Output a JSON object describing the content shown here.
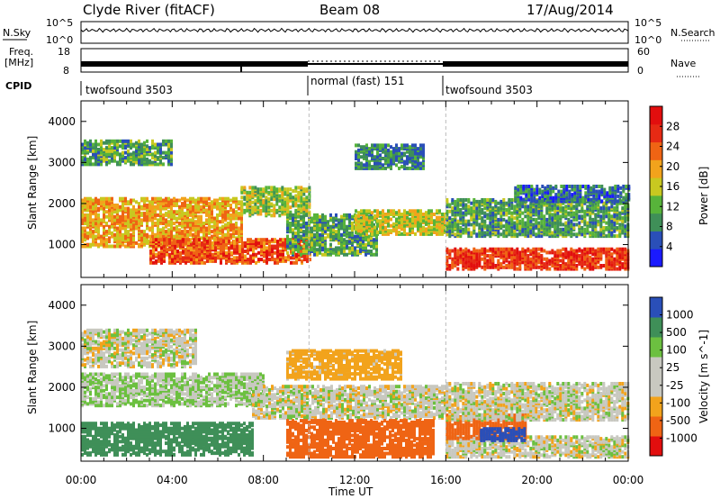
{
  "header": {
    "station": "Clyde River (fitACF)",
    "beam": "Beam 08",
    "date": "17/Aug/2014"
  },
  "strips": {
    "nsky_label": "N.Sky",
    "nsearch_label": "N.Search",
    "freq_label_line1": "Freq.",
    "freq_label_line2": "[MHz]",
    "nave_label": "Nave",
    "cpid_label": "CPID",
    "noise_left_ticks": [
      "10^5",
      "10^0"
    ],
    "noise_right_ticks": [
      "10^5",
      "10^0"
    ],
    "freq_left_ticks": [
      "18",
      "8"
    ],
    "freq_right_ticks": [
      "60",
      "0"
    ]
  },
  "cpid_segments": [
    {
      "label": "twofsound 3503",
      "start_h": 0,
      "end_h": 10
    },
    {
      "label": "normal (fast) 151",
      "start_h": 10,
      "end_h": 16
    },
    {
      "label": "twofsound 3503",
      "start_h": 16,
      "end_h": 24
    }
  ],
  "x_axis": {
    "title": "Time UT",
    "ticks": [
      "00:00",
      "04:00",
      "08:00",
      "12:00",
      "16:00",
      "20:00",
      "00:00"
    ]
  },
  "power_colorbar": {
    "title": "Power [dB]",
    "ticks": [
      "28",
      "24",
      "20",
      "16",
      "12",
      "8",
      "4"
    ],
    "colors": [
      "#1a1aff",
      "#2a4fb8",
      "#3f8f58",
      "#57b33a",
      "#c8c820",
      "#f2a31c",
      "#ef6414",
      "#e62a14",
      "#e20e0e"
    ]
  },
  "velocity_colorbar": {
    "title": "Velocity [m s^-1]",
    "ticks": [
      "1000",
      "500",
      "100",
      "25",
      "-25",
      "-100",
      "-500",
      "-1000"
    ],
    "colors": [
      "#2a4fb8",
      "#3f8f58",
      "#6cc040",
      "#c8c8c0",
      "#c8c8c0",
      "#f2a31c",
      "#ef6414",
      "#e20e0e"
    ]
  },
  "chart_data": [
    {
      "type": "heatmap",
      "title": "Power",
      "xlabel": "Time UT",
      "ylabel": "Slant Range [km]",
      "y_ticks": [
        "1000",
        "2000",
        "3000",
        "4000"
      ],
      "xlim_hours": [
        0,
        24
      ],
      "ylim_km": [
        200,
        4500
      ],
      "bands": [
        {
          "start_h": 0.0,
          "end_h": 7.0,
          "center_km": 1600,
          "width_km": 1200,
          "level_db": 20
        },
        {
          "start_h": 0.0,
          "end_h": 4.0,
          "center_km": 3300,
          "width_km": 600,
          "level_db": 10
        },
        {
          "start_h": 3.0,
          "end_h": 10.0,
          "center_km": 900,
          "width_km": 600,
          "level_db": 26
        },
        {
          "start_h": 7.0,
          "end_h": 10.0,
          "center_km": 2100,
          "width_km": 700,
          "level_db": 14
        },
        {
          "start_h": 9.0,
          "end_h": 13.0,
          "center_km": 1300,
          "width_km": 1000,
          "level_db": 10
        },
        {
          "start_h": 12.0,
          "end_h": 16.0,
          "center_km": 1600,
          "width_km": 600,
          "level_db": 16
        },
        {
          "start_h": 12.0,
          "end_h": 15.0,
          "center_km": 3200,
          "width_km": 600,
          "level_db": 8
        },
        {
          "start_h": 16.0,
          "end_h": 24.0,
          "center_km": 700,
          "width_km": 500,
          "level_db": 28
        },
        {
          "start_h": 16.0,
          "end_h": 24.0,
          "center_km": 1700,
          "width_km": 900,
          "level_db": 10
        },
        {
          "start_h": 19.0,
          "end_h": 24.0,
          "center_km": 2300,
          "width_km": 400,
          "level_db": 6
        }
      ]
    },
    {
      "type": "heatmap",
      "title": "Velocity",
      "xlabel": "Time UT",
      "ylabel": "Slant Range [km]",
      "y_ticks": [
        "1000",
        "2000",
        "3000",
        "4000"
      ],
      "xlim_hours": [
        0,
        24
      ],
      "ylim_km": [
        200,
        4500
      ],
      "bands": [
        {
          "start_h": 0.0,
          "end_h": 7.5,
          "center_km": 800,
          "width_km": 800,
          "level_ms": 400
        },
        {
          "start_h": 0.0,
          "end_h": 8.0,
          "center_km": 2000,
          "width_km": 800,
          "level_ms": 60
        },
        {
          "start_h": 0.0,
          "end_h": 5.0,
          "center_km": 3000,
          "width_km": 900,
          "level_ms": 0
        },
        {
          "start_h": 7.5,
          "end_h": 16.0,
          "center_km": 1700,
          "width_km": 800,
          "level_ms": 0
        },
        {
          "start_h": 9.0,
          "end_h": 15.5,
          "center_km": 800,
          "width_km": 900,
          "level_ms": -600
        },
        {
          "start_h": 9.0,
          "end_h": 14.0,
          "center_km": 2600,
          "width_km": 700,
          "level_ms": -150
        },
        {
          "start_h": 16.0,
          "end_h": 24.0,
          "center_km": 600,
          "width_km": 500,
          "level_ms": 0
        },
        {
          "start_h": 16.0,
          "end_h": 19.5,
          "center_km": 1100,
          "width_km": 600,
          "level_ms": -400
        },
        {
          "start_h": 17.5,
          "end_h": 19.5,
          "center_km": 900,
          "width_km": 300,
          "level_ms": 900
        },
        {
          "start_h": 16.0,
          "end_h": 24.0,
          "center_km": 1700,
          "width_km": 900,
          "level_ms": 0
        }
      ]
    }
  ]
}
